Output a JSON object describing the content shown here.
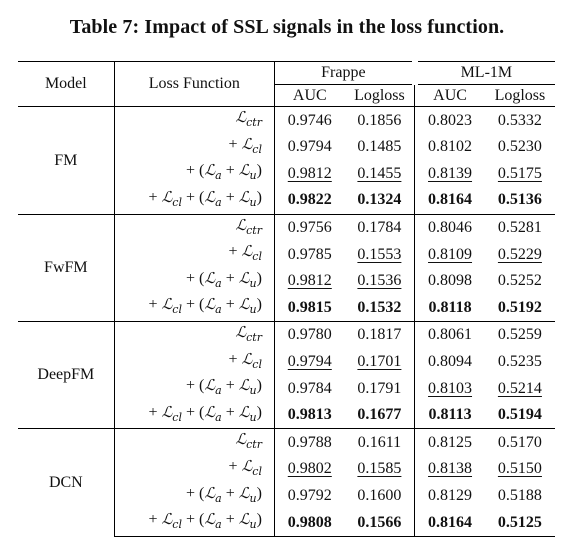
{
  "caption": "Table 7: Impact of SSL signals in the loss function.",
  "header": {
    "model": "Model",
    "loss": "Loss Function",
    "group1": "Frappe",
    "group2": "ML-1M",
    "auc": "AUC",
    "logloss": "Logloss"
  },
  "losses": [
    "𝓛ctr",
    "+ 𝓛cl",
    "+ (𝓛a + 𝓛u)",
    "+ 𝓛cl + (𝓛a + 𝓛u)"
  ],
  "models": [
    {
      "name": "FM",
      "rows": [
        {
          "loss": "ℒ_ctr",
          "values": [
            "0.9746",
            "0.1856",
            "0.8023",
            "0.5332"
          ],
          "fmt": [
            "",
            "",
            "",
            ""
          ]
        },
        {
          "loss": "+ ℒ_cl",
          "values": [
            "0.9794",
            "0.1485",
            "0.8102",
            "0.5230"
          ],
          "fmt": [
            "",
            "",
            "",
            ""
          ]
        },
        {
          "loss": "+ (ℒ_a + ℒ_u)",
          "values": [
            "0.9812",
            "0.1455",
            "0.8139",
            "0.5175"
          ],
          "fmt": [
            "u",
            "u",
            "u",
            "u"
          ]
        },
        {
          "loss": "+ ℒ_cl + (ℒ_a + ℒ_u)",
          "values": [
            "0.9822",
            "0.1324",
            "0.8164",
            "0.5136"
          ],
          "fmt": [
            "b",
            "b",
            "b",
            "b"
          ]
        }
      ]
    },
    {
      "name": "FwFM",
      "rows": [
        {
          "loss": "ℒ_ctr",
          "values": [
            "0.9756",
            "0.1784",
            "0.8046",
            "0.5281"
          ],
          "fmt": [
            "",
            "",
            "",
            ""
          ]
        },
        {
          "loss": "+ ℒ_cl",
          "values": [
            "0.9785",
            "0.1553",
            "0.8109",
            "0.5229"
          ],
          "fmt": [
            "",
            "u",
            "u",
            "u"
          ]
        },
        {
          "loss": "+ (ℒ_a + ℒ_u)",
          "values": [
            "0.9812",
            "0.1536",
            "0.8098",
            "0.5252"
          ],
          "fmt": [
            "u",
            "u",
            "",
            ""
          ]
        },
        {
          "loss": "+ ℒ_cl + (ℒ_a + ℒ_u)",
          "values": [
            "0.9815",
            "0.1532",
            "0.8118",
            "0.5192"
          ],
          "fmt": [
            "b",
            "b",
            "b",
            "b"
          ]
        }
      ]
    },
    {
      "name": "DeepFM",
      "rows": [
        {
          "loss": "ℒ_ctr",
          "values": [
            "0.9780",
            "0.1817",
            "0.8061",
            "0.5259"
          ],
          "fmt": [
            "",
            "",
            "",
            ""
          ]
        },
        {
          "loss": "+ ℒ_cl",
          "values": [
            "0.9794",
            "0.1701",
            "0.8094",
            "0.5235"
          ],
          "fmt": [
            "u",
            "u",
            "",
            ""
          ]
        },
        {
          "loss": "+ (ℒ_a + ℒ_u)",
          "values": [
            "0.9784",
            "0.1791",
            "0.8103",
            "0.5214"
          ],
          "fmt": [
            "",
            "",
            "u",
            "u"
          ]
        },
        {
          "loss": "+ ℒ_cl + (ℒ_a + ℒ_u)",
          "values": [
            "0.9813",
            "0.1677",
            "0.8113",
            "0.5194"
          ],
          "fmt": [
            "b",
            "b",
            "b",
            "b"
          ]
        }
      ]
    },
    {
      "name": "DCN",
      "rows": [
        {
          "loss": "ℒ_ctr",
          "values": [
            "0.9788",
            "0.1611",
            "0.8125",
            "0.5170"
          ],
          "fmt": [
            "",
            "",
            "",
            ""
          ]
        },
        {
          "loss": "+ ℒ_cl",
          "values": [
            "0.9802",
            "0.1585",
            "0.8138",
            "0.5150"
          ],
          "fmt": [
            "u",
            "u",
            "u",
            "u"
          ]
        },
        {
          "loss": "+ (ℒ_a + ℒ_u)",
          "values": [
            "0.9792",
            "0.1600",
            "0.8129",
            "0.5188"
          ],
          "fmt": [
            "",
            "",
            "",
            ""
          ]
        },
        {
          "loss": "+ ℒ_cl + (ℒ_a + ℒ_u)",
          "values": [
            "0.9808",
            "0.1566",
            "0.8164",
            "0.5125"
          ],
          "fmt": [
            "b",
            "b",
            "b",
            "b"
          ]
        }
      ]
    }
  ]
}
